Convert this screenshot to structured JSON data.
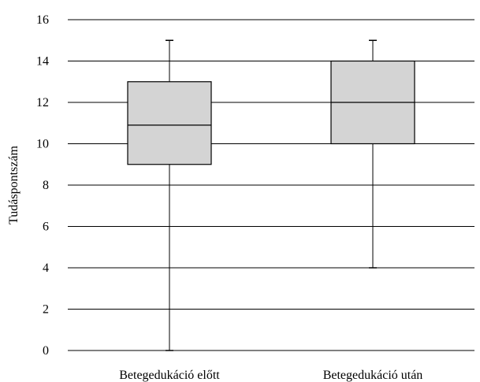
{
  "chart_data": {
    "type": "boxplot",
    "ylabel": "Tudáspontszám",
    "xlabel": "",
    "ylim": [
      0,
      16
    ],
    "yticks": [
      0,
      2,
      4,
      6,
      8,
      10,
      12,
      14,
      16
    ],
    "grid": true,
    "categories": [
      "Betegedukáció előtt",
      "Betegedukáció után"
    ],
    "boxes": [
      {
        "category": "Betegedukáció előtt",
        "min": 0,
        "q1": 9,
        "median": 10.9,
        "q3": 13,
        "max": 15
      },
      {
        "category": "Betegedukáció után",
        "min": 4,
        "q1": 10,
        "median": 12,
        "q3": 14,
        "max": 15
      }
    ],
    "box_fill": "#d4d4d4",
    "line_color": "#000000"
  }
}
